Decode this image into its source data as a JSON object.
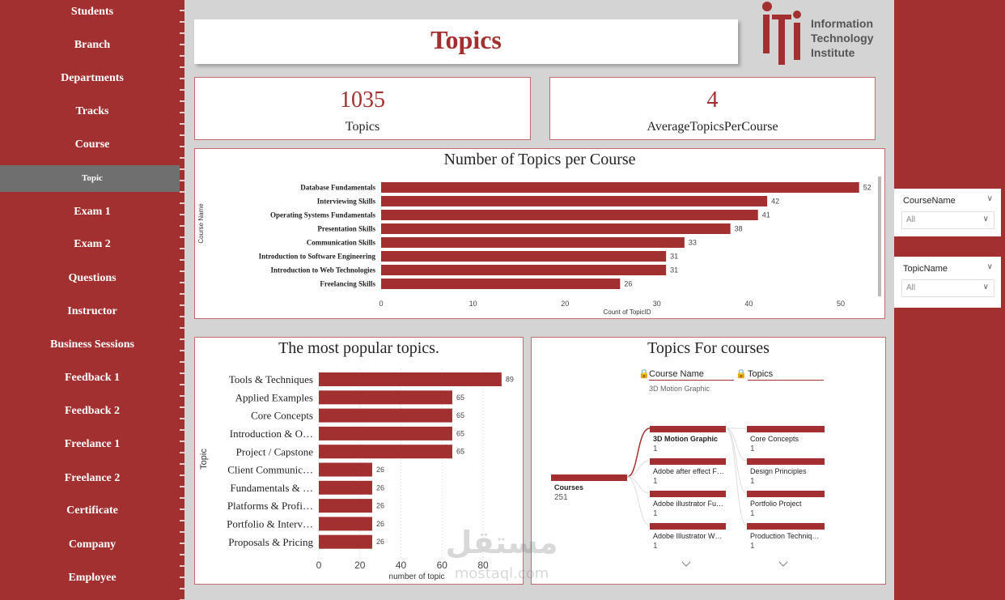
{
  "sidebar": {
    "items": [
      {
        "label": "Students"
      },
      {
        "label": "Branch"
      },
      {
        "label": "Departments"
      },
      {
        "label": "Tracks"
      },
      {
        "label": "Course"
      },
      {
        "label": "Topic",
        "active": true
      },
      {
        "label": "Exam 1"
      },
      {
        "label": "Exam 2"
      },
      {
        "label": "Questions"
      },
      {
        "label": "Instructor"
      },
      {
        "label": "Business Sessions"
      },
      {
        "label": "Feedback 1"
      },
      {
        "label": "Feedback 2"
      },
      {
        "label": "Freelance 1"
      },
      {
        "label": "Freelance 2"
      },
      {
        "label": "Certificate"
      },
      {
        "label": "Company"
      },
      {
        "label": "Employee"
      }
    ]
  },
  "header": {
    "title": "Topics"
  },
  "logo": {
    "line1": "Information",
    "line2": "Technology",
    "line3": "Institute",
    "mark": "iti"
  },
  "kpis": {
    "topics": {
      "value": "1035",
      "label": "Topics"
    },
    "avg": {
      "value": "4",
      "label": "AverageTopicsPerCourse"
    }
  },
  "slicers": {
    "course": {
      "title": "CourseName",
      "value": "All"
    },
    "topic": {
      "title": "TopicName",
      "value": "All"
    }
  },
  "colors": {
    "brand": "#a33030",
    "bar": "#a33030"
  },
  "chart_data": [
    {
      "type": "bar",
      "orientation": "horizontal",
      "title": "Number of Topics per Course",
      "xlabel": "Count of TopicID",
      "ylabel": "Course Name",
      "xlim": [
        0,
        52
      ],
      "xticks": [
        "0",
        "10",
        "20",
        "30",
        "40",
        "50"
      ],
      "categories": [
        "Database Fundamentals",
        "Interviewing Skills",
        "Operating Systems Fundamentals",
        "Presentation Skills",
        "Communication Skills",
        "Introduction to Software Engineering",
        "Introduction to Web Technologies",
        "Freelancing Skills"
      ],
      "values": [
        52,
        42,
        41,
        38,
        33,
        31,
        31,
        26
      ]
    },
    {
      "type": "bar",
      "orientation": "horizontal",
      "title": "The most popular topics.",
      "xlabel": "number of topic",
      "ylabel": "Topic",
      "xlim": [
        0,
        89
      ],
      "xticks": [
        "0",
        "20",
        "40",
        "60",
        "80"
      ],
      "categories": [
        "Tools & Techniques",
        "Applied Examples",
        "Core Concepts",
        "Introduction & O…",
        "Project / Capstone",
        "Client Communic…",
        "Fundamentals & …",
        "Platforms & Profi…",
        "Portfolio & Interv…",
        "Proposals & Pricing"
      ],
      "values": [
        89,
        65,
        65,
        65,
        65,
        26,
        26,
        26,
        26,
        26
      ]
    }
  ],
  "decomp": {
    "title": "Topics For courses",
    "col1": {
      "header": "Course Name",
      "sub": "3D Motion Graphic"
    },
    "col2": {
      "header": "Topics"
    },
    "root": {
      "label": "Courses",
      "value": "251"
    },
    "courses": [
      {
        "label": "3D Motion Graphic",
        "value": "1"
      },
      {
        "label": "Adobe after effect F…",
        "value": "1"
      },
      {
        "label": "Adobe illustrator Fu…",
        "value": "1"
      },
      {
        "label": "Adobe Illustrator W…",
        "value": "1"
      }
    ],
    "topics": [
      {
        "label": "Core Concepts",
        "value": "1"
      },
      {
        "label": "Design Principles",
        "value": "1"
      },
      {
        "label": "Portfolio Project",
        "value": "1"
      },
      {
        "label": "Production Techniq…",
        "value": "1"
      }
    ]
  },
  "watermark": {
    "arabic": "مستقل",
    "latin": "mostaql.com"
  }
}
